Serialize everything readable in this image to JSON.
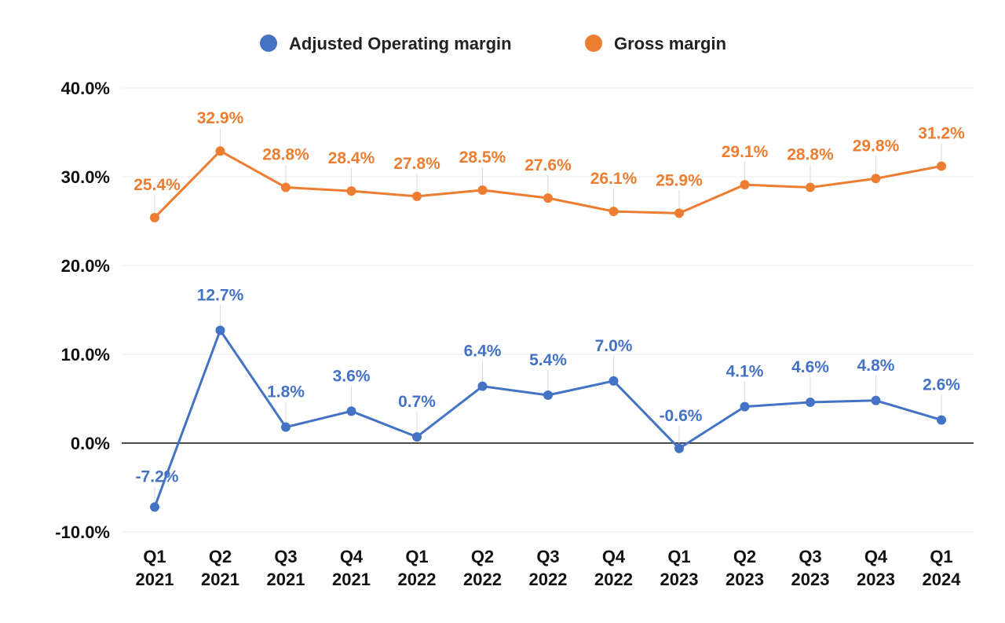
{
  "chart_data": {
    "type": "line",
    "title": "",
    "xlabel": "",
    "ylabel": "",
    "ylim": [
      -10,
      40
    ],
    "yticks": [
      -10,
      0,
      10,
      20,
      30,
      40
    ],
    "ytick_labels": [
      "-10.0%",
      "0.0%",
      "10.0%",
      "20.0%",
      "30.0%",
      "40.0%"
    ],
    "grid": true,
    "legend_position": "top-center",
    "categories": [
      [
        "Q1",
        "2021"
      ],
      [
        "Q2",
        "2021"
      ],
      [
        "Q3",
        "2021"
      ],
      [
        "Q4",
        "2021"
      ],
      [
        "Q1",
        "2022"
      ],
      [
        "Q2",
        "2022"
      ],
      [
        "Q3",
        "2022"
      ],
      [
        "Q4",
        "2022"
      ],
      [
        "Q1",
        "2023"
      ],
      [
        "Q2",
        "2023"
      ],
      [
        "Q3",
        "2023"
      ],
      [
        "Q4",
        "2023"
      ],
      [
        "Q1",
        "2024"
      ]
    ],
    "series": [
      {
        "name": "Adjusted Operating margin",
        "color": "#4472c4",
        "values": [
          -7.2,
          12.7,
          1.8,
          3.6,
          0.7,
          6.4,
          5.4,
          7.0,
          -0.6,
          4.1,
          4.6,
          4.8,
          2.6
        ],
        "labels": [
          "-7.2%",
          "12.7%",
          "1.8%",
          "3.6%",
          "0.7%",
          "6.4%",
          "5.4%",
          "7.0%",
          "-0.6%",
          "4.1%",
          "4.6%",
          "4.8%",
          "2.6%"
        ]
      },
      {
        "name": "Gross margin",
        "color": "#ed7d31",
        "values": [
          25.4,
          32.9,
          28.8,
          28.4,
          27.8,
          28.5,
          27.6,
          26.1,
          25.9,
          29.1,
          28.8,
          29.8,
          31.2
        ],
        "labels": [
          "25.4%",
          "32.9%",
          "28.8%",
          "28.4%",
          "27.8%",
          "28.5%",
          "27.6%",
          "26.1%",
          "25.9%",
          "29.1%",
          "28.8%",
          "29.8%",
          "31.2%"
        ]
      }
    ]
  }
}
